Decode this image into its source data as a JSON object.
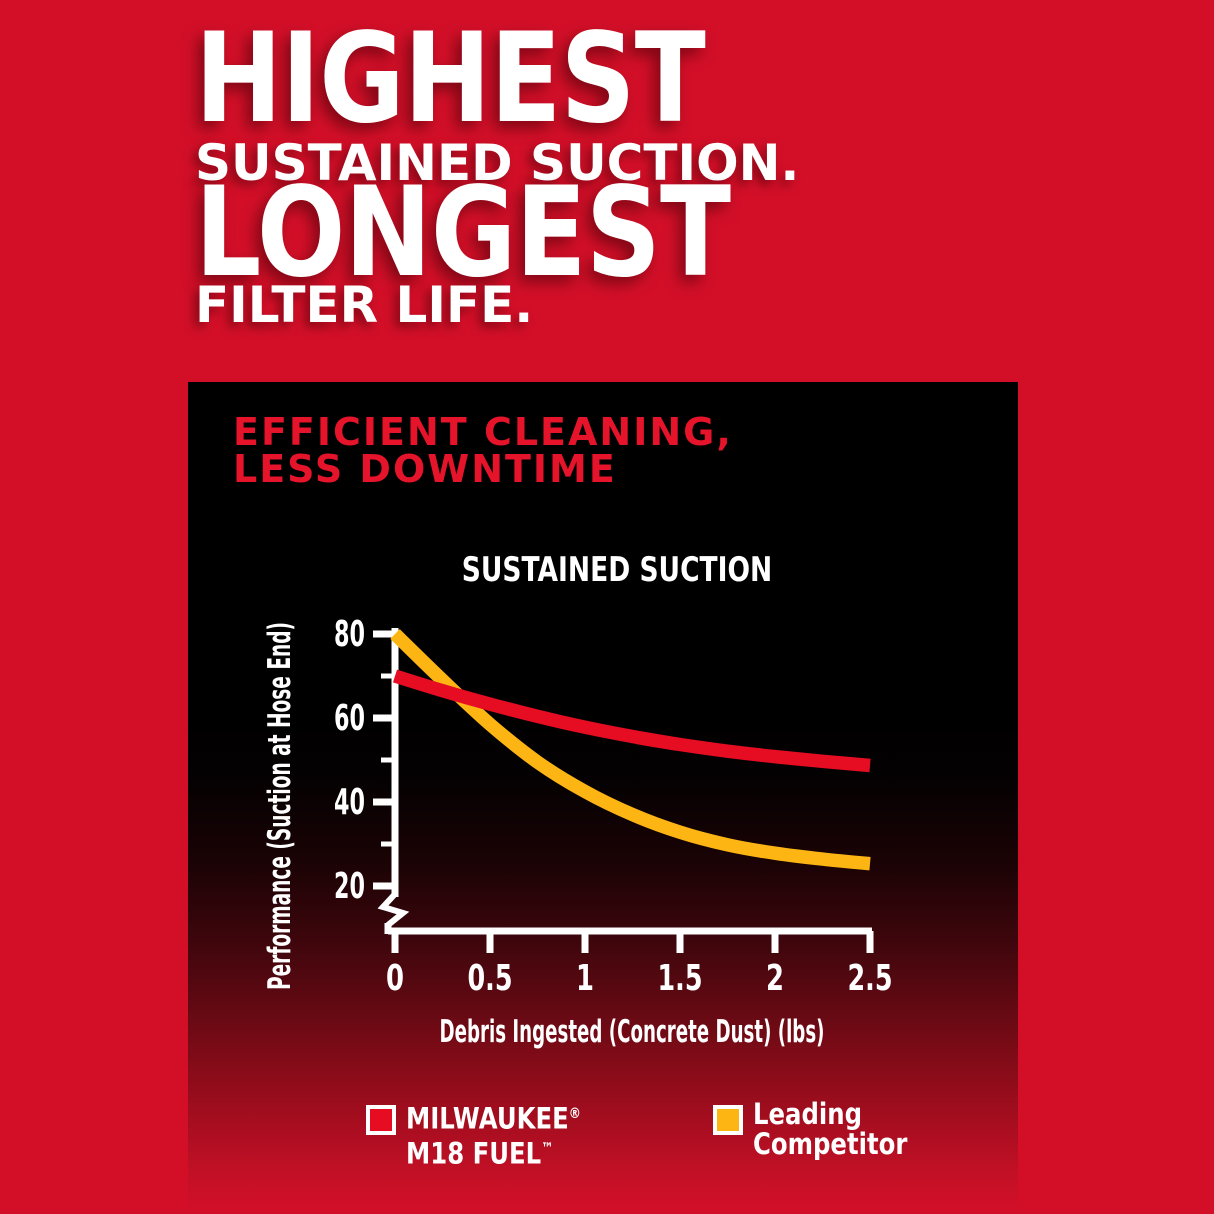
{
  "page": {
    "background_red": "#d30f28",
    "panel_black": "#000000"
  },
  "hero": {
    "line1": "HIGHEST",
    "line2": "SUSTAINED SUCTION.",
    "line3": "LONGEST",
    "line4": "FILTER LIFE.",
    "text_color": "#ffffff"
  },
  "panel": {
    "heading_line1": "EFFICIENT CLEANING,",
    "heading_line2": "LESS DOWNTIME",
    "heading_color": "#e5142b"
  },
  "chart_data": {
    "type": "line",
    "title": "SUSTAINED SUCTION",
    "xlabel": "Debris Ingested (Concrete Dust) (lbs)",
    "ylabel": "Performance (Suction at Hose End)",
    "grid": false,
    "legend_position": "bottom",
    "axis_break_below_y": 20,
    "x_range": [
      0,
      2.5
    ],
    "ylim_shown": [
      20,
      80
    ],
    "x_ticks": [
      0,
      0.5,
      1,
      1.5,
      2,
      2.5
    ],
    "x_tick_labels": [
      "0",
      "0.5",
      "1",
      "1.5",
      "2",
      "2.5"
    ],
    "y_ticks_major": [
      80,
      60,
      40,
      20
    ],
    "y_tick_labels": [
      "80",
      "60",
      "40",
      "20"
    ],
    "y_ticks_minor": [
      70,
      50,
      30
    ],
    "x": [
      0,
      0.25,
      0.5,
      0.75,
      1,
      1.25,
      1.5,
      1.75,
      2,
      2.25,
      2.5
    ],
    "series": [
      {
        "name": "Leading Competitor",
        "color": "#fdb514",
        "values": [
          80,
          69,
          58.5,
          49.5,
          42.5,
          37,
          32.8,
          29.8,
          27.8,
          26.4,
          25.3
        ]
      },
      {
        "name": "MILWAUKEE® M18 FUEL™",
        "color": "#e60c22",
        "values": [
          70,
          66.5,
          63.3,
          60.4,
          57.8,
          55.6,
          53.7,
          52.1,
          50.8,
          49.7,
          48.7
        ]
      }
    ]
  },
  "legend": {
    "items": [
      {
        "line1": "MILWAUKEE",
        "line1_mark": "®",
        "line2": "M18 FUEL",
        "line2_mark": "™",
        "color": "#e60c22"
      },
      {
        "line1": "Leading",
        "line1_mark": "",
        "line2": "Competitor",
        "line2_mark": "",
        "color": "#fdb514"
      }
    ]
  }
}
